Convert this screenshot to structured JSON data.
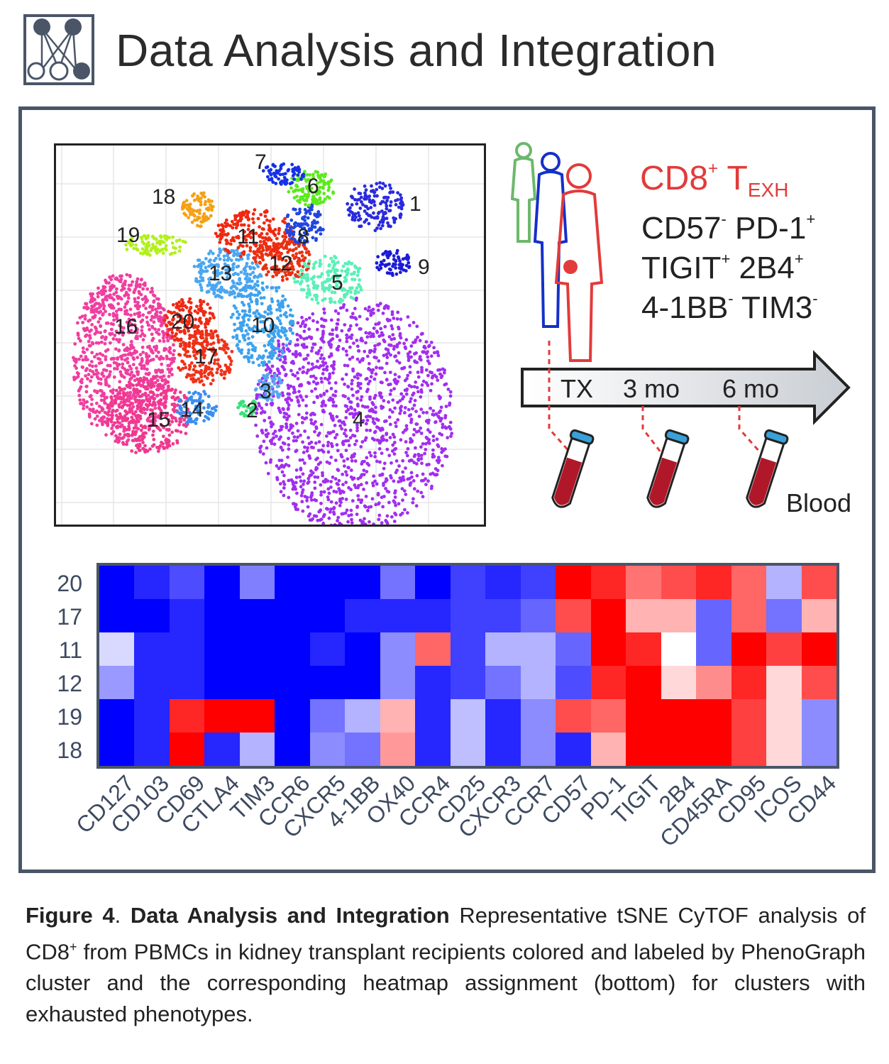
{
  "header": {
    "logo_icon": "network-nodes-icon",
    "title": "Data Analysis and Integration"
  },
  "tsne": {
    "cluster_labels": [
      "1",
      "2",
      "3",
      "4",
      "5",
      "6",
      "7",
      "8",
      "9",
      "10",
      "11",
      "12",
      "13",
      "14",
      "15",
      "16",
      "17",
      "18",
      "19",
      "20"
    ],
    "cluster_colors": {
      "1": "#2a2ae0",
      "2": "#39e07a",
      "3": "#56a8f0",
      "4": "#a12ef0",
      "5": "#5af0b8",
      "6": "#5bea1c",
      "7": "#1530e8",
      "8": "#2046e0",
      "9": "#1b1bd8",
      "10": "#3ea2ee",
      "11": "#f02810",
      "12": "#ea3010",
      "13": "#4aa6f0",
      "14": "#3a8ef0",
      "15": "#f0388e",
      "16": "#f03ea0",
      "17": "#f03218",
      "18": "#f7a014",
      "19": "#b2f01a",
      "20": "#ee2a14"
    }
  },
  "illustration": {
    "title_main": "CD8",
    "title_sup": "+",
    "title_t": " T",
    "title_sub": "EXH",
    "markers": [
      [
        {
          "name": "CD57",
          "sign": "-"
        },
        {
          "name": " PD-1",
          "sign": "+"
        }
      ],
      [
        {
          "name": "TIGIT",
          "sign": "+"
        },
        {
          "name": " 2B4",
          "sign": "+"
        }
      ],
      [
        {
          "name": "4-1BB",
          "sign": "-"
        },
        {
          "name": " TIM3",
          "sign": "-"
        }
      ]
    ],
    "timeline": [
      "TX",
      "3 mo",
      "6 mo"
    ],
    "blood_label": "Blood",
    "colors": {
      "red": "#e23b3b",
      "blue": "#1530c8",
      "green": "#6cb86c",
      "tube_cap": "#3aa0d8",
      "blood": "#b0182a"
    }
  },
  "heatmap": {
    "rows": [
      "20",
      "17",
      "11",
      "12",
      "19",
      "18"
    ],
    "columns": [
      "CD127",
      "CD103",
      "CD69",
      "CTLA4",
      "TIM3",
      "CCR6",
      "CXCR5",
      "4-1BB",
      "OX40",
      "CCR4",
      "CD25",
      "CXCR3",
      "CCR7",
      "CD57",
      "PD-1",
      "TIGIT",
      "2B4",
      "CD45RA",
      "CD95",
      "ICOS",
      "CD44"
    ],
    "values": [
      [
        -1.0,
        -0.85,
        -0.7,
        -1.0,
        -0.5,
        -1.0,
        -1.0,
        -1.0,
        -0.55,
        -1.0,
        -0.75,
        -0.85,
        -0.75,
        1.0,
        0.85,
        0.55,
        0.7,
        0.85,
        0.6,
        -0.3,
        0.7
      ],
      [
        -1.0,
        -1.0,
        -0.85,
        -1.0,
        -1.0,
        -1.0,
        -1.0,
        -0.85,
        -0.85,
        -0.85,
        -0.75,
        -0.75,
        -0.6,
        0.7,
        1.0,
        0.3,
        0.3,
        -0.6,
        0.6,
        -0.55,
        0.3
      ],
      [
        -0.15,
        -0.85,
        -0.85,
        -1.0,
        -1.0,
        -1.0,
        -0.85,
        -1.0,
        -0.45,
        0.6,
        -0.75,
        -0.3,
        -0.3,
        -0.6,
        1.0,
        0.85,
        0.0,
        -0.6,
        1.0,
        0.75,
        1.0
      ],
      [
        -0.4,
        -0.85,
        -0.85,
        -1.0,
        -1.0,
        -1.0,
        -1.0,
        -1.0,
        -0.45,
        -0.85,
        -0.75,
        -0.55,
        -0.3,
        -0.7,
        0.85,
        1.0,
        0.15,
        0.45,
        0.85,
        0.15,
        0.7
      ],
      [
        -1.0,
        -0.85,
        0.85,
        1.0,
        1.0,
        -1.0,
        -0.55,
        -0.3,
        0.3,
        -0.85,
        -0.25,
        -0.85,
        -0.45,
        0.7,
        0.6,
        1.0,
        1.0,
        1.0,
        0.75,
        0.15,
        -0.45
      ],
      [
        -1.0,
        -0.85,
        1.0,
        -0.85,
        -0.3,
        -1.0,
        -0.45,
        -0.55,
        0.4,
        -0.85,
        -0.25,
        -0.85,
        -0.45,
        -0.85,
        0.3,
        1.0,
        1.0,
        1.0,
        0.75,
        0.15,
        -0.45
      ]
    ],
    "color_low": "#0000ff",
    "color_mid": "#ffffff",
    "color_high": "#ff0000"
  },
  "caption": {
    "figure_label": "Figure 4",
    "sep": ". ",
    "bold_title": "Data Analysis and Integration",
    "text_1": " Representative tSNE CyTOF analysis of CD8",
    "sup": "+",
    "text_2": " from PBMCs in kidney transplant recipients colored and labeled by PhenoGraph cluster and the corresponding heatmap assignment (bottom) for clusters with exhausted phenotypes."
  }
}
